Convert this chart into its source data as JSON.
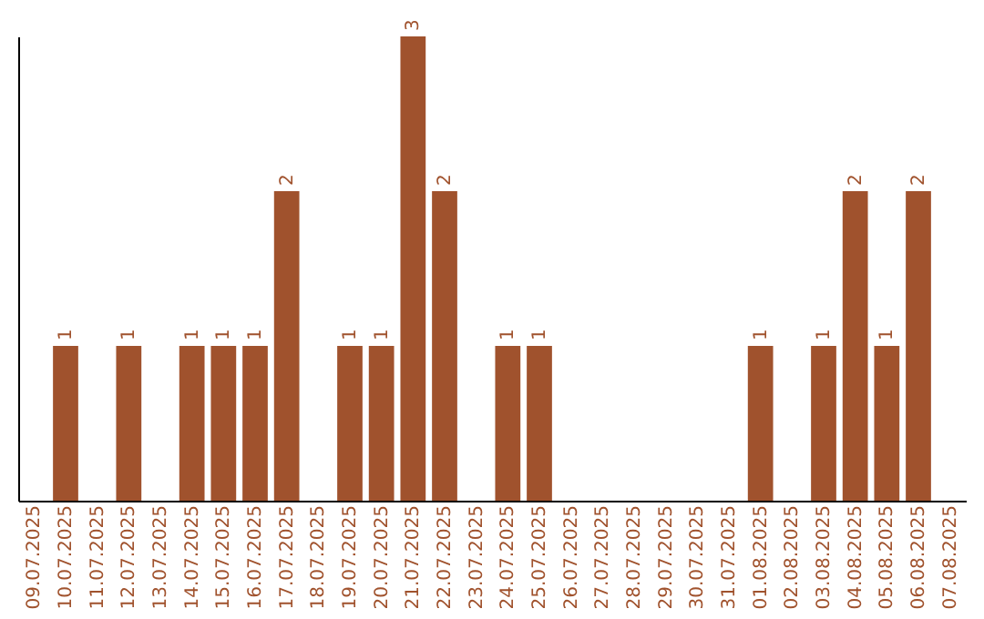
{
  "chart_data": {
    "type": "bar",
    "categories": [
      "09.07.2025",
      "10.07.2025",
      "11.07.2025",
      "12.07.2025",
      "13.07.2025",
      "14.07.2025",
      "15.07.2025",
      "16.07.2025",
      "17.07.2025",
      "18.07.2025",
      "19.07.2025",
      "20.07.2025",
      "21.07.2025",
      "22.07.2025",
      "23.07.2025",
      "24.07.2025",
      "25.07.2025",
      "26.07.2025",
      "27.07.2025",
      "28.07.2025",
      "29.07.2025",
      "30.07.2025",
      "31.07.2025",
      "01.08.2025",
      "02.08.2025",
      "03.08.2025",
      "04.08.2025",
      "05.08.2025",
      "06.08.2025",
      "07.08.2025"
    ],
    "values": [
      0,
      1,
      0,
      1,
      0,
      1,
      1,
      1,
      2,
      0,
      1,
      1,
      3,
      2,
      0,
      1,
      1,
      0,
      0,
      0,
      0,
      0,
      0,
      1,
      0,
      1,
      2,
      1,
      2,
      0
    ],
    "value_labels": [
      null,
      "1",
      null,
      "1",
      null,
      "1",
      "1",
      "1",
      "2",
      null,
      "1",
      "1",
      "3",
      "2",
      null,
      "1",
      "1",
      null,
      null,
      null,
      null,
      null,
      null,
      "1",
      null,
      "1",
      "2",
      "1",
      "2",
      null
    ],
    "color": "#a0522d",
    "tick_labels": "x",
    "grid": false
  }
}
